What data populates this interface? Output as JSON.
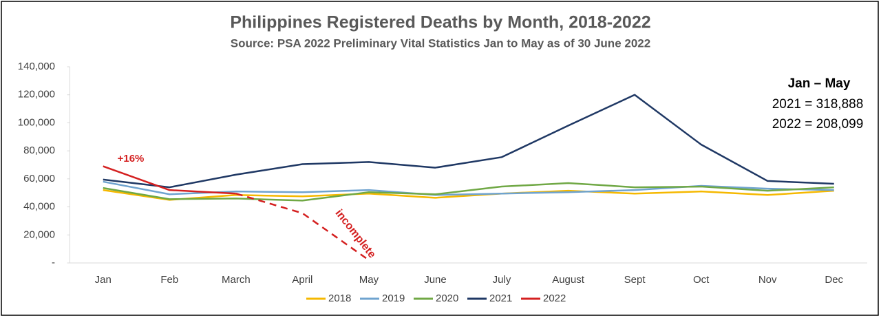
{
  "chart_data": {
    "type": "line",
    "title": "Philippines Registered Deaths by Month, 2018-2022",
    "subtitle": "Source: PSA 2022 Preliminary Vital Statistics Jan to May as of 30 June 2022",
    "categories": [
      "Jan",
      "Feb",
      "March",
      "April",
      "May",
      "June",
      "July",
      "August",
      "Sept",
      "Oct",
      "Nov",
      "Dec"
    ],
    "series": [
      {
        "name": "2018",
        "color": "#f5b800",
        "values": [
          52000,
          45000,
          48500,
          47500,
          49500,
          46500,
          49500,
          51500,
          49500,
          51000,
          48500,
          51500
        ]
      },
      {
        "name": "2019",
        "color": "#6fa3cf",
        "values": [
          58000,
          49000,
          51000,
          50500,
          52000,
          48500,
          49500,
          50500,
          52000,
          55000,
          53000,
          52000
        ]
      },
      {
        "name": "2020",
        "color": "#70a845",
        "values": [
          53500,
          45500,
          46000,
          44500,
          50500,
          49000,
          54500,
          57000,
          54000,
          54500,
          51500,
          54000
        ]
      },
      {
        "name": "2021",
        "color": "#1f3864",
        "values": [
          59500,
          54000,
          63000,
          70500,
          72000,
          68000,
          75500,
          98000,
          120000,
          84500,
          58500,
          56500
        ]
      },
      {
        "name": "2022",
        "color": "#d42020",
        "dashed_from": "March",
        "values": [
          69000,
          52000,
          49500,
          35500,
          2000,
          null,
          null,
          null,
          null,
          null,
          null,
          null
        ]
      }
    ],
    "ylim": [
      0,
      140000
    ],
    "yticks": [
      {
        "value": 0,
        "label": "-"
      },
      {
        "value": 20000,
        "label": "20,000"
      },
      {
        "value": 40000,
        "label": "40,000"
      },
      {
        "value": 60000,
        "label": "60,000"
      },
      {
        "value": 80000,
        "label": "80,000"
      },
      {
        "value": 100000,
        "label": "100,000"
      },
      {
        "value": 120000,
        "label": "120,000"
      },
      {
        "value": 140000,
        "label": "140,000"
      }
    ],
    "grid": false,
    "annotations": [
      "+16%",
      "incomplete"
    ],
    "summary": {
      "title": "Jan – May",
      "lines": [
        "2021 = 318,888",
        "2022 = 208,099"
      ]
    }
  }
}
